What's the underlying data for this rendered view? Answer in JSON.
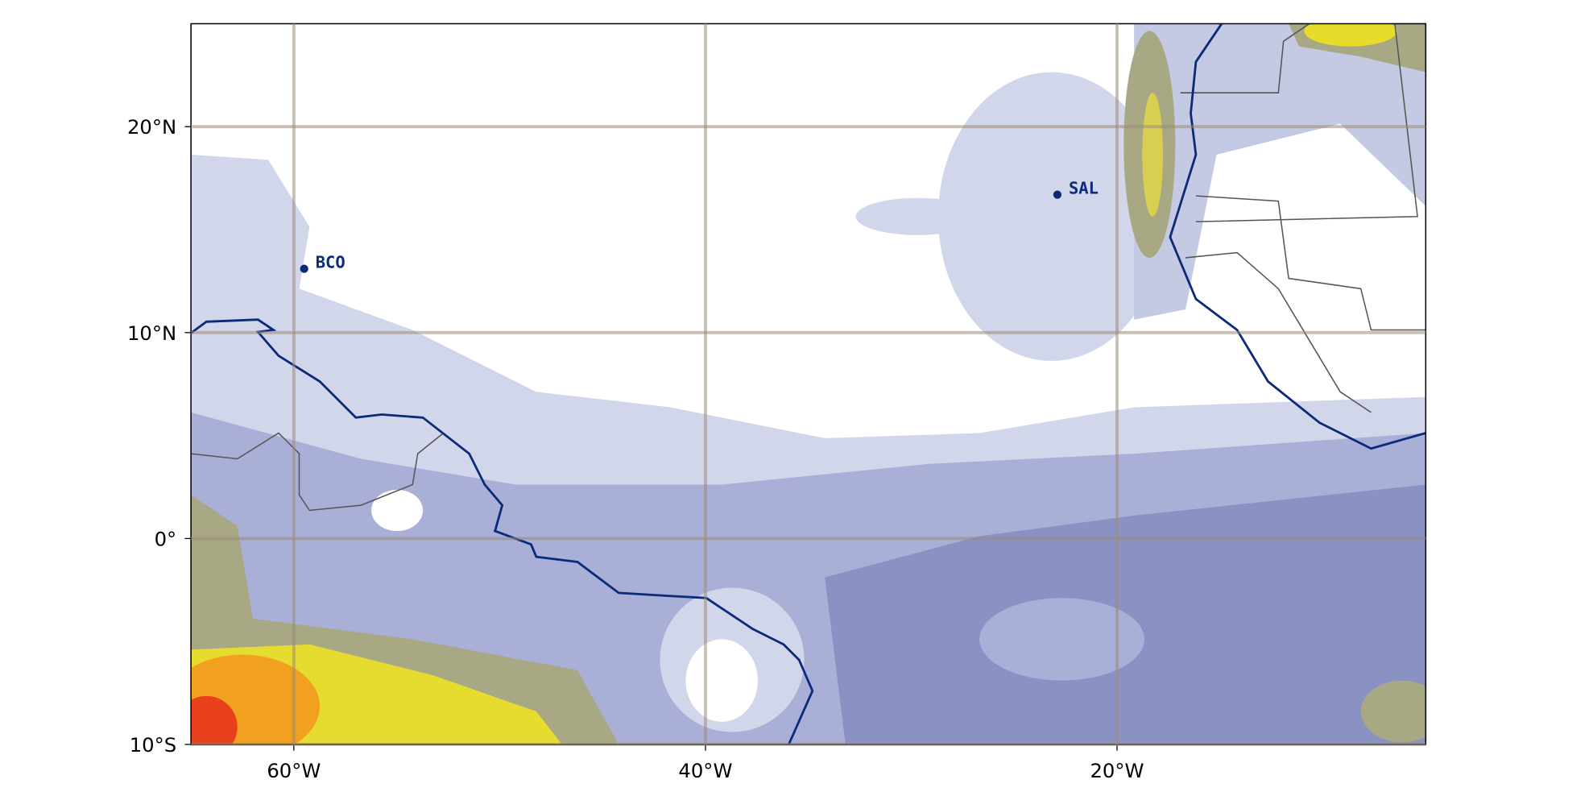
{
  "map": {
    "xlim": [
      -65,
      -5
    ],
    "ylim": [
      -10,
      25
    ],
    "xticks": [
      {
        "value": -60,
        "label": "60°W"
      },
      {
        "value": -40,
        "label": "40°W"
      },
      {
        "value": -20,
        "label": "20°W"
      }
    ],
    "yticks": [
      {
        "value": -10,
        "label": "10°S"
      },
      {
        "value": 0,
        "label": "0°"
      },
      {
        "value": 10,
        "label": "10°N"
      },
      {
        "value": 20,
        "label": "20°N"
      }
    ],
    "grid": true,
    "stations": [
      {
        "label": "BCO",
        "lon": -59.5,
        "lat": 13.1
      },
      {
        "label": "SAL",
        "lon": -22.9,
        "lat": 16.7
      }
    ]
  }
}
